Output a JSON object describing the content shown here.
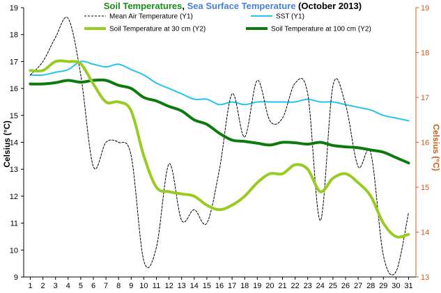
{
  "chart_data": {
    "type": "line",
    "title": {
      "part1": "Soil Temperatures",
      "sep": ", ",
      "part2": "Sea Surface Temperature",
      "part3": " (October 2013)",
      "part1_color": "#1a8c1a",
      "part2_color": "#4a7fd4",
      "part3_color": "#000000"
    },
    "x": [
      1,
      2,
      3,
      4,
      5,
      6,
      7,
      8,
      9,
      10,
      11,
      12,
      13,
      14,
      15,
      16,
      17,
      18,
      19,
      20,
      21,
      22,
      23,
      24,
      25,
      26,
      27,
      28,
      29,
      30,
      31
    ],
    "ylabel_left": "Celsius (°C)",
    "ylabel_right": "Celsius (°C)",
    "ylim_left": [
      9,
      19
    ],
    "ylim_right": [
      13,
      19
    ],
    "yticks_left": [
      9,
      10,
      11,
      12,
      13,
      14,
      15,
      16,
      17,
      18,
      19
    ],
    "yticks_right": [
      13,
      14,
      15,
      16,
      17,
      18,
      19
    ],
    "right_axis_color": "#cc5a1a",
    "grid": false,
    "legend_position": "top",
    "series": [
      {
        "name": "Mean Air Temperature (Y1)",
        "axis": "left",
        "color": "#000000",
        "style": "dashed",
        "width": 1,
        "values": [
          16.5,
          17.0,
          17.9,
          18.6,
          16.5,
          13.1,
          14.0,
          14.0,
          13.5,
          9.6,
          10.1,
          13.2,
          11.1,
          11.5,
          11.0,
          13.0,
          15.8,
          14.2,
          16.3,
          14.8,
          14.9,
          16.2,
          15.8,
          11.1,
          16.1,
          15.4,
          13.1,
          13.6,
          9.8,
          9.2,
          11.4
        ]
      },
      {
        "name": "SST (Y1)",
        "axis": "left",
        "color": "#22c3f0",
        "style": "solid",
        "width": 2,
        "values": [
          16.5,
          16.5,
          16.6,
          16.7,
          17.0,
          16.9,
          16.8,
          16.9,
          16.7,
          16.5,
          16.2,
          16.0,
          15.8,
          15.6,
          15.6,
          15.4,
          15.5,
          15.4,
          15.5,
          15.5,
          15.5,
          15.5,
          15.6,
          15.5,
          15.5,
          15.4,
          15.3,
          15.2,
          15.0,
          14.9,
          14.8
        ]
      },
      {
        "name": "Soil Temperature at 30 cm (Y2)",
        "axis": "right",
        "color": "#99cc22",
        "style": "solid",
        "width": 4,
        "values": [
          17.6,
          17.6,
          17.8,
          17.8,
          17.75,
          17.3,
          16.9,
          16.9,
          16.7,
          15.7,
          15.0,
          14.9,
          14.85,
          14.8,
          14.6,
          14.5,
          14.6,
          14.8,
          15.1,
          15.3,
          15.3,
          15.5,
          15.4,
          14.9,
          15.2,
          15.3,
          15.1,
          14.8,
          14.2,
          13.9,
          13.95
        ]
      },
      {
        "name": "Soil Temperature at 100 cm (Y2)",
        "axis": "right",
        "color": "#0c7a0c",
        "style": "solid",
        "width": 4,
        "values": [
          17.3,
          17.3,
          17.33,
          17.38,
          17.34,
          17.38,
          17.38,
          17.27,
          17.2,
          17.0,
          16.92,
          16.8,
          16.7,
          16.5,
          16.4,
          16.2,
          16.05,
          16.02,
          15.98,
          15.94,
          16.0,
          15.99,
          15.96,
          16.0,
          15.93,
          15.9,
          15.88,
          15.83,
          15.78,
          15.66,
          15.54
        ]
      }
    ]
  }
}
